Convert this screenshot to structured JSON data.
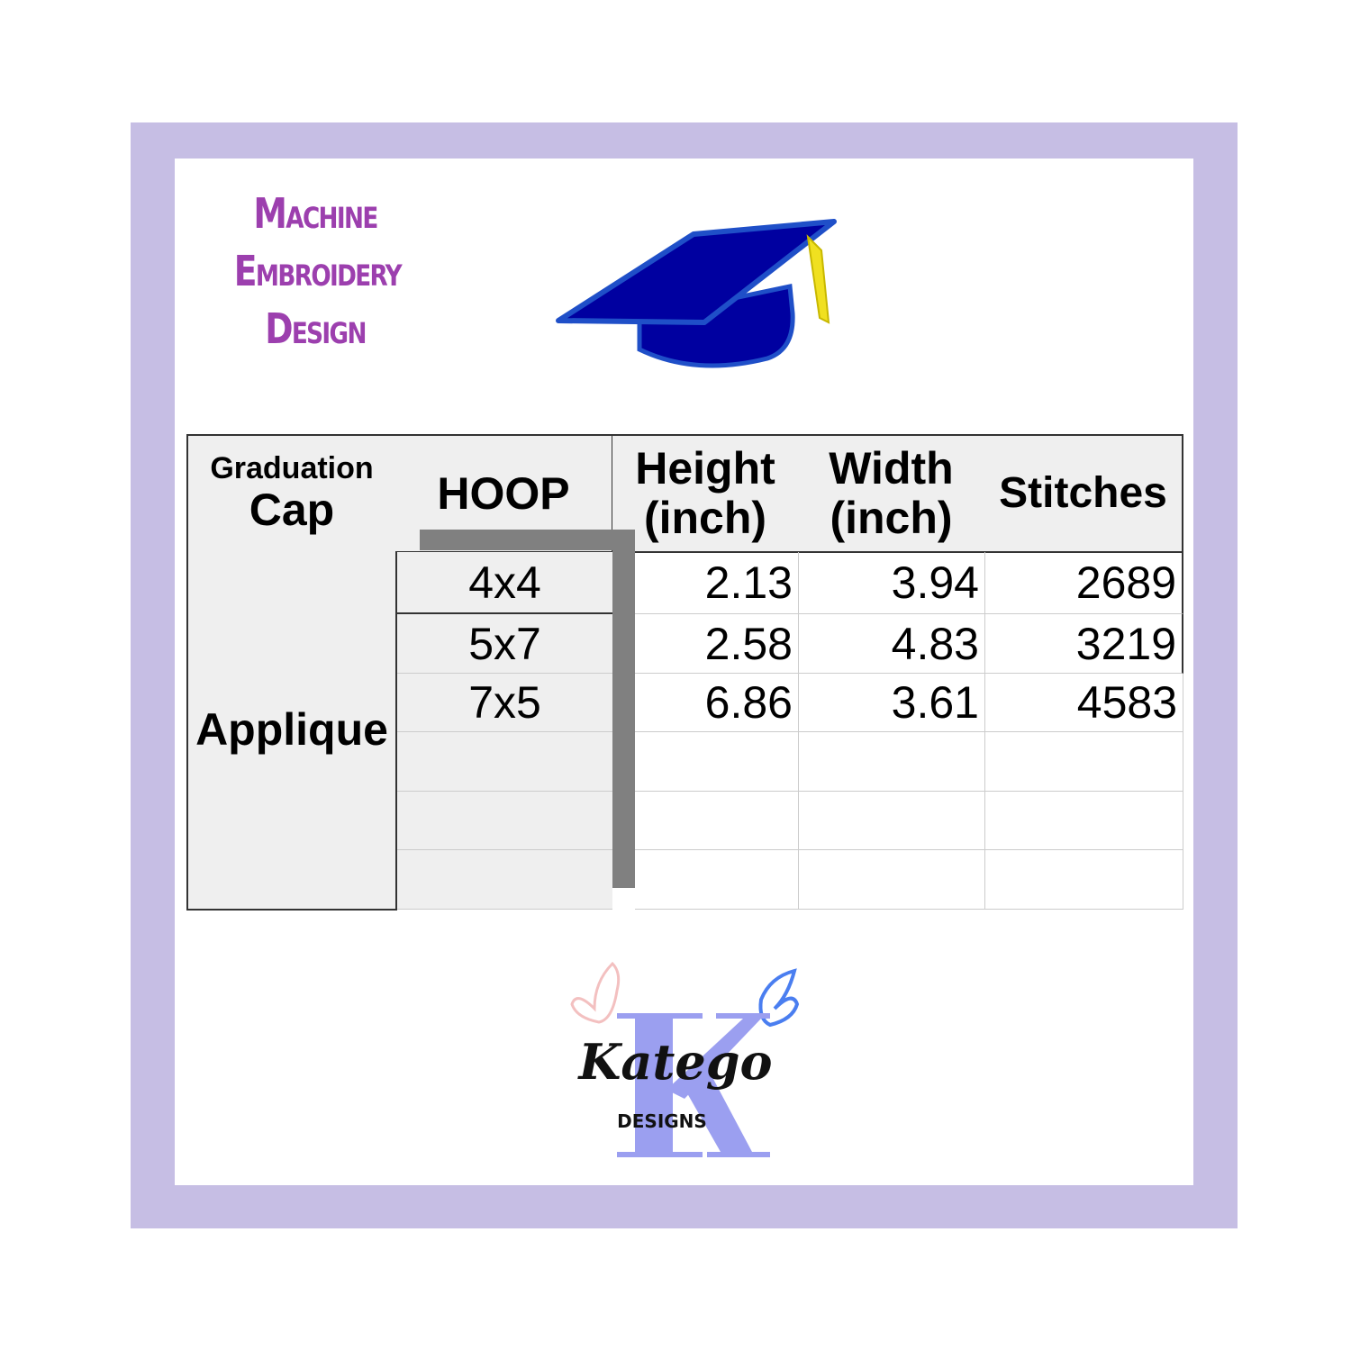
{
  "title_lines": [
    "Machine",
    "Embroidery",
    "Design"
  ],
  "table": {
    "headers": {
      "design_line1": "Graduation",
      "design_line2": "Cap",
      "hoop": "HOOP",
      "height_line1": "Height",
      "height_line2": "(inch)",
      "width_line1": "Width",
      "width_line2": "(inch)",
      "stitches": "Stitches"
    },
    "category": "Applique",
    "rows": [
      {
        "hoop": "4x4",
        "height": "2.13",
        "width": "3.94",
        "stitches": "2689"
      },
      {
        "hoop": "5x7",
        "height": "2.58",
        "width": "4.83",
        "stitches": "3219"
      },
      {
        "hoop": "7x5",
        "height": "6.86",
        "width": "3.61",
        "stitches": "4583"
      }
    ]
  },
  "logo": {
    "name": "Katego",
    "sub": "DESIGNS",
    "letter": "K"
  },
  "colors": {
    "frame": "#c6bee4",
    "title": "#9c3fae",
    "cap": "#0000a0",
    "cap_edge": "#1f4fc8",
    "tassel": "#f0e020",
    "logo_k": "#9b9ff0"
  }
}
